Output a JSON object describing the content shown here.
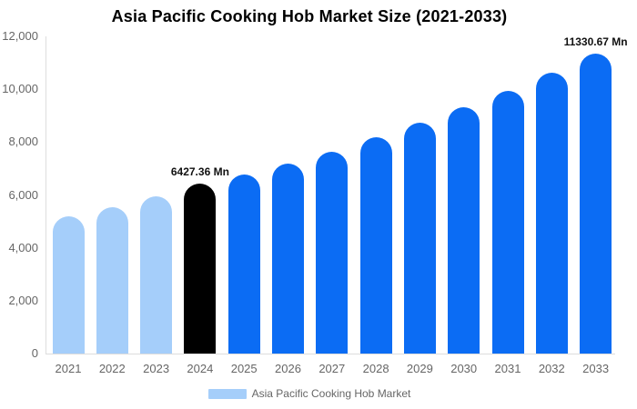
{
  "chart_data": {
    "type": "bar",
    "title": "Asia Pacific Cooking Hob Market Size (2021-2033)",
    "unit": "Mn",
    "categories": [
      "2021",
      "2022",
      "2023",
      "2024",
      "2025",
      "2026",
      "2027",
      "2028",
      "2029",
      "2030",
      "2031",
      "2032",
      "2033"
    ],
    "values": [
      5190,
      5550,
      5940,
      6427.36,
      6770,
      7200,
      7650,
      8200,
      8730,
      9320,
      9930,
      10620,
      11330.67
    ],
    "bar_colors": [
      "#A5CEFA",
      "#A5CEFA",
      "#A5CEFA",
      "#000000",
      "#0B6CF4",
      "#0B6CF4",
      "#0B6CF4",
      "#0B6CF4",
      "#0B6CF4",
      "#0B6CF4",
      "#0B6CF4",
      "#0B6CF4",
      "#0B6CF4"
    ],
    "ylim": [
      0,
      12000
    ],
    "y_tick_labels": [
      "0",
      "2,000",
      "4,000",
      "6,000",
      "8,000",
      "10,000",
      "12,000"
    ],
    "y_tick_values": [
      0,
      2000,
      4000,
      6000,
      8000,
      10000,
      12000
    ],
    "grid": false,
    "annotations": [
      {
        "category": "2024",
        "text": "6427.36 Mn"
      },
      {
        "category": "2033",
        "text": "11330.67 Mn"
      }
    ],
    "legend": {
      "position": "bottom",
      "label": "Asia Pacific Cooking Hob Market",
      "swatch_color": "#A5CEFA"
    },
    "colors": {
      "historical_bar": "#A5CEFA",
      "base_year_bar": "#000000",
      "forecast_bar": "#0B6CF4",
      "axis_line": "#dddddd",
      "tick_text": "#666666",
      "title_text": "#000000"
    }
  }
}
